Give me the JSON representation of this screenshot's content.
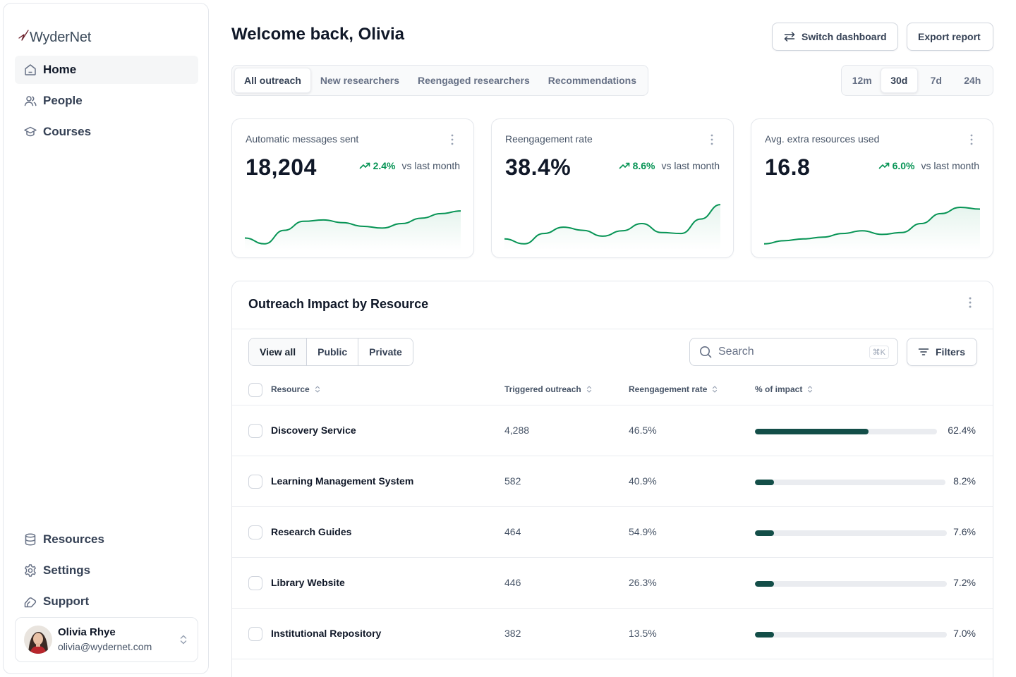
{
  "brand": {
    "name": "WyderNet",
    "accent": "#134e48",
    "trend_color": "#079455"
  },
  "sidebar": {
    "top_items": [
      {
        "label": "Home",
        "icon": "home-icon",
        "active": true
      },
      {
        "label": "People",
        "icon": "users-icon",
        "active": false
      },
      {
        "label": "Courses",
        "icon": "graduation-cap-icon",
        "active": false
      }
    ],
    "bottom_items": [
      {
        "label": "Resources",
        "icon": "database-icon"
      },
      {
        "label": "Settings",
        "icon": "gear-icon"
      },
      {
        "label": "Support",
        "icon": "support-icon"
      }
    ],
    "user": {
      "name": "Olivia Rhye",
      "email": "olivia@wydernet.com"
    }
  },
  "header": {
    "title": "Welcome back, Olivia",
    "switch_label": "Switch dashboard",
    "export_label": "Export report"
  },
  "tabs": [
    {
      "label": "All outreach",
      "active": true
    },
    {
      "label": "New researchers",
      "active": false
    },
    {
      "label": "Reengaged researchers",
      "active": false
    },
    {
      "label": "Recommendations",
      "active": false
    }
  ],
  "ranges": [
    {
      "label": "12m",
      "active": false
    },
    {
      "label": "30d",
      "active": true
    },
    {
      "label": "7d",
      "active": false
    },
    {
      "label": "24h",
      "active": false
    }
  ],
  "metrics": [
    {
      "title": "Automatic messages sent",
      "value": "18,204",
      "change": "2.4%",
      "change_label": "vs last month",
      "spark": [
        0.18,
        0.05,
        0.35,
        0.55,
        0.58,
        0.52,
        0.44,
        0.4,
        0.5,
        0.62,
        0.72,
        0.78
      ]
    },
    {
      "title": "Reengagement rate",
      "value": "38.4%",
      "change": "8.6%",
      "change_label": "vs last month",
      "spark": [
        0.16,
        0.05,
        0.28,
        0.42,
        0.35,
        0.22,
        0.34,
        0.5,
        0.3,
        0.28,
        0.6,
        0.92
      ]
    },
    {
      "title": "Avg. extra resources used",
      "value": "16.8",
      "change": "6.0%",
      "change_label": "vs last month",
      "spark": [
        0.05,
        0.12,
        0.16,
        0.2,
        0.28,
        0.34,
        0.26,
        0.3,
        0.5,
        0.72,
        0.86,
        0.82
      ]
    }
  ],
  "table": {
    "title": "Outreach Impact by Resource",
    "segments": [
      {
        "label": "View all",
        "active": true
      },
      {
        "label": "Public",
        "active": false
      },
      {
        "label": "Private",
        "active": false
      }
    ],
    "search_placeholder": "Search",
    "search_shortcut": "⌘K",
    "filters_label": "Filters",
    "columns": [
      "Resource",
      "Triggered outreach",
      "Reengagement rate",
      "% of impact"
    ],
    "rows": [
      {
        "name": "Discovery Service",
        "outreach": "4,288",
        "rate": "46.5%",
        "impact": "62.4%",
        "impact_value": 62.4
      },
      {
        "name": "Learning Management System",
        "outreach": "582",
        "rate": "40.9%",
        "impact": "8.2%",
        "impact_value": 8.2
      },
      {
        "name": "Research Guides",
        "outreach": "464",
        "rate": "54.9%",
        "impact": "7.6%",
        "impact_value": 7.6
      },
      {
        "name": "Library Website",
        "outreach": "446",
        "rate": "26.3%",
        "impact": "7.2%",
        "impact_value": 7.2
      },
      {
        "name": "Institutional Repository",
        "outreach": "382",
        "rate": "13.5%",
        "impact": "7.0%",
        "impact_value": 7.0
      }
    ]
  }
}
